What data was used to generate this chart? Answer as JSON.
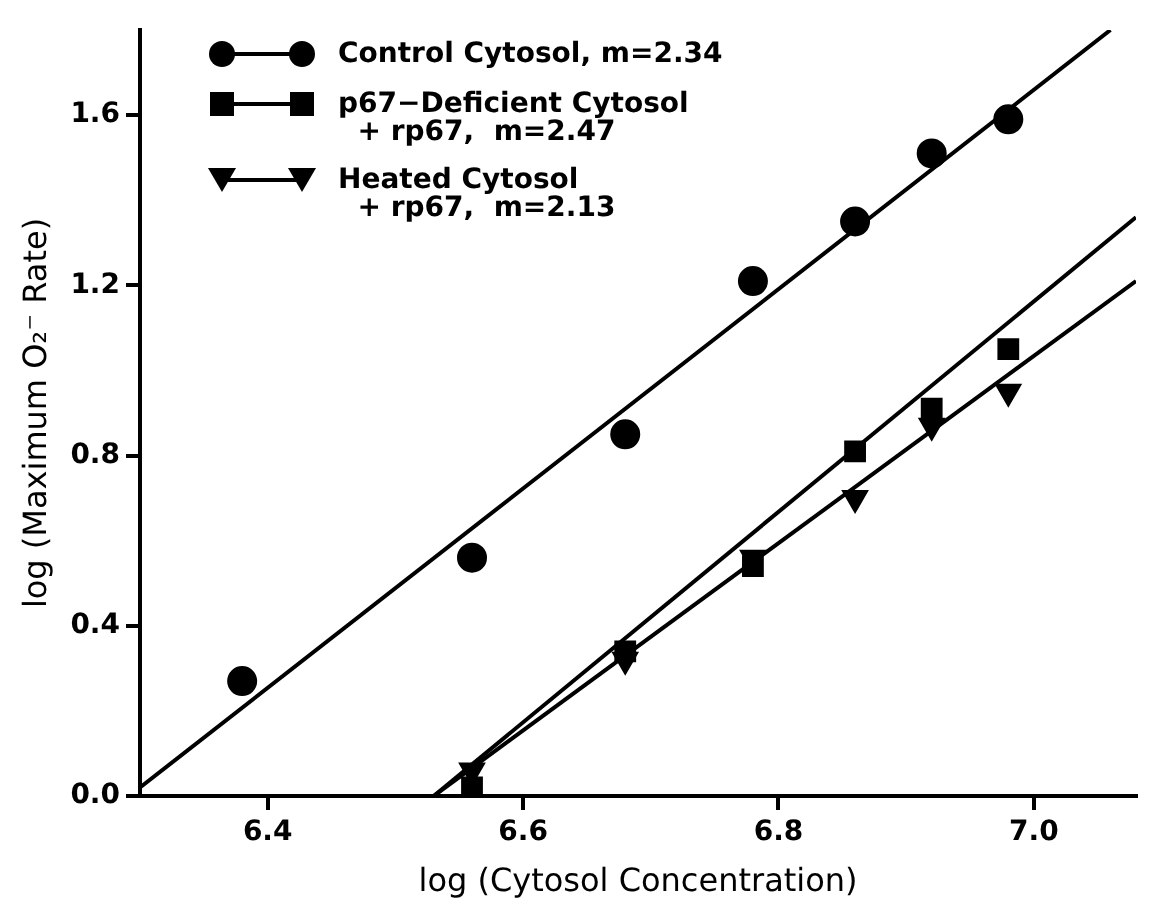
{
  "chart_data": {
    "type": "scatter",
    "xlabel": "log (Cytosol Concentration)",
    "ylabel": "log (Maximum O₂⁻ Rate)",
    "xlim": [
      6.3,
      7.08
    ],
    "xticks": [
      6.4,
      6.6,
      6.8,
      {
        "value": 7.0,
        "label": "7.0"
      }
    ],
    "ylim": [
      0,
      1.8
    ],
    "yticks": [
      {
        "value": 0,
        "label": "0.0"
      },
      0.4,
      0.8,
      1.2,
      1.6
    ],
    "grid": false,
    "legend": "top left",
    "series": [
      {
        "name": "Control Cytosol, m=2.34",
        "color": "#000000",
        "marker": "circle",
        "x": [
          6.38,
          6.56,
          6.68,
          6.78,
          6.86,
          6.92,
          6.98
        ],
        "values": [
          0.27,
          0.56,
          0.85,
          1.21,
          1.35,
          1.51,
          1.59
        ]
      },
      {
        "name": "p67−Deficient Cytosol\n  + rp67,  m=2.47",
        "color": "#000000",
        "marker": "square",
        "x": [
          6.56,
          6.68,
          6.78,
          6.86,
          6.92,
          6.98
        ],
        "values": [
          0.02,
          0.34,
          0.54,
          0.81,
          0.91,
          1.05
        ]
      },
      {
        "name": "Heated Cytosol\n  + rp67,  m=2.13",
        "color": "#000000",
        "marker": "triangle",
        "x": [
          6.56,
          6.68,
          6.78,
          6.86,
          6.92,
          6.98
        ],
        "values": [
          0.06,
          0.32,
          0.56,
          0.7,
          0.87,
          0.95
        ]
      },
      {
        "type": "line",
        "color": "#000000",
        "marker": "none",
        "x": [
          6.3,
          7.06
        ],
        "values": [
          0.02,
          1.8
        ]
      },
      {
        "type": "line",
        "color": "#000000",
        "marker": "none",
        "x": [
          6.53,
          7.08
        ],
        "values": [
          0,
          1.36
        ]
      },
      {
        "type": "line",
        "color": "#000000",
        "marker": "none",
        "x": [
          6.53,
          7.08
        ],
        "values": [
          0,
          1.21
        ]
      }
    ]
  }
}
